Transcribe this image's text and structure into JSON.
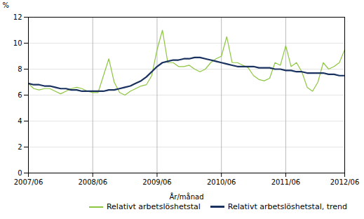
{
  "chart_data": {
    "type": "line",
    "xlabel": "År/månad",
    "ylabel": "%",
    "categories": [
      "2007/06",
      null,
      null,
      null,
      null,
      null,
      null,
      null,
      null,
      null,
      null,
      null,
      "2008/06",
      null,
      null,
      null,
      null,
      null,
      null,
      null,
      null,
      null,
      null,
      null,
      "2009/06",
      null,
      null,
      null,
      null,
      null,
      null,
      null,
      null,
      null,
      null,
      null,
      "2010/06",
      null,
      null,
      null,
      null,
      null,
      null,
      null,
      null,
      null,
      null,
      null,
      "2011/06",
      null,
      null,
      null,
      null,
      null,
      null,
      null,
      null,
      null,
      null,
      "2012/06"
    ],
    "series": [
      {
        "name": "Relativt arbetslöshetstal",
        "color": "#8dc63f",
        "values": [
          6.9,
          6.5,
          6.4,
          6.5,
          6.5,
          6.3,
          6.1,
          6.3,
          6.5,
          6.6,
          6.5,
          6.3,
          6.2,
          6.2,
          7.5,
          8.8,
          7.0,
          6.2,
          6.0,
          6.3,
          6.5,
          6.7,
          6.8,
          7.5,
          9.5,
          11.0,
          8.5,
          8.5,
          8.2,
          8.2,
          8.3,
          8.0,
          7.8,
          8.0,
          8.5,
          8.8,
          9.0,
          10.5,
          8.5,
          8.5,
          8.3,
          8.1,
          7.5,
          7.2,
          7.1,
          7.3,
          8.5,
          8.3,
          9.8,
          8.2,
          8.5,
          7.8,
          6.6,
          6.3,
          7.0,
          8.5,
          8.0,
          8.2,
          8.5,
          9.5
        ]
      },
      {
        "name": "Relativt arbetslöshetstal, trend",
        "color": "#1a3260",
        "values": [
          6.9,
          6.8,
          6.8,
          6.7,
          6.7,
          6.6,
          6.5,
          6.5,
          6.4,
          6.4,
          6.3,
          6.3,
          6.3,
          6.3,
          6.3,
          6.4,
          6.4,
          6.5,
          6.6,
          6.7,
          6.9,
          7.1,
          7.4,
          7.8,
          8.2,
          8.5,
          8.6,
          8.7,
          8.7,
          8.8,
          8.8,
          8.9,
          8.9,
          8.8,
          8.7,
          8.6,
          8.5,
          8.4,
          8.3,
          8.2,
          8.2,
          8.2,
          8.2,
          8.1,
          8.1,
          8.1,
          8.0,
          8.0,
          7.9,
          7.9,
          7.8,
          7.8,
          7.7,
          7.7,
          7.7,
          7.7,
          7.6,
          7.6,
          7.5,
          7.5
        ]
      }
    ],
    "ylim": [
      0,
      12
    ],
    "yticks": [
      0,
      2,
      4,
      6,
      8,
      10,
      12
    ],
    "grid": true,
    "legend": "lower right"
  }
}
